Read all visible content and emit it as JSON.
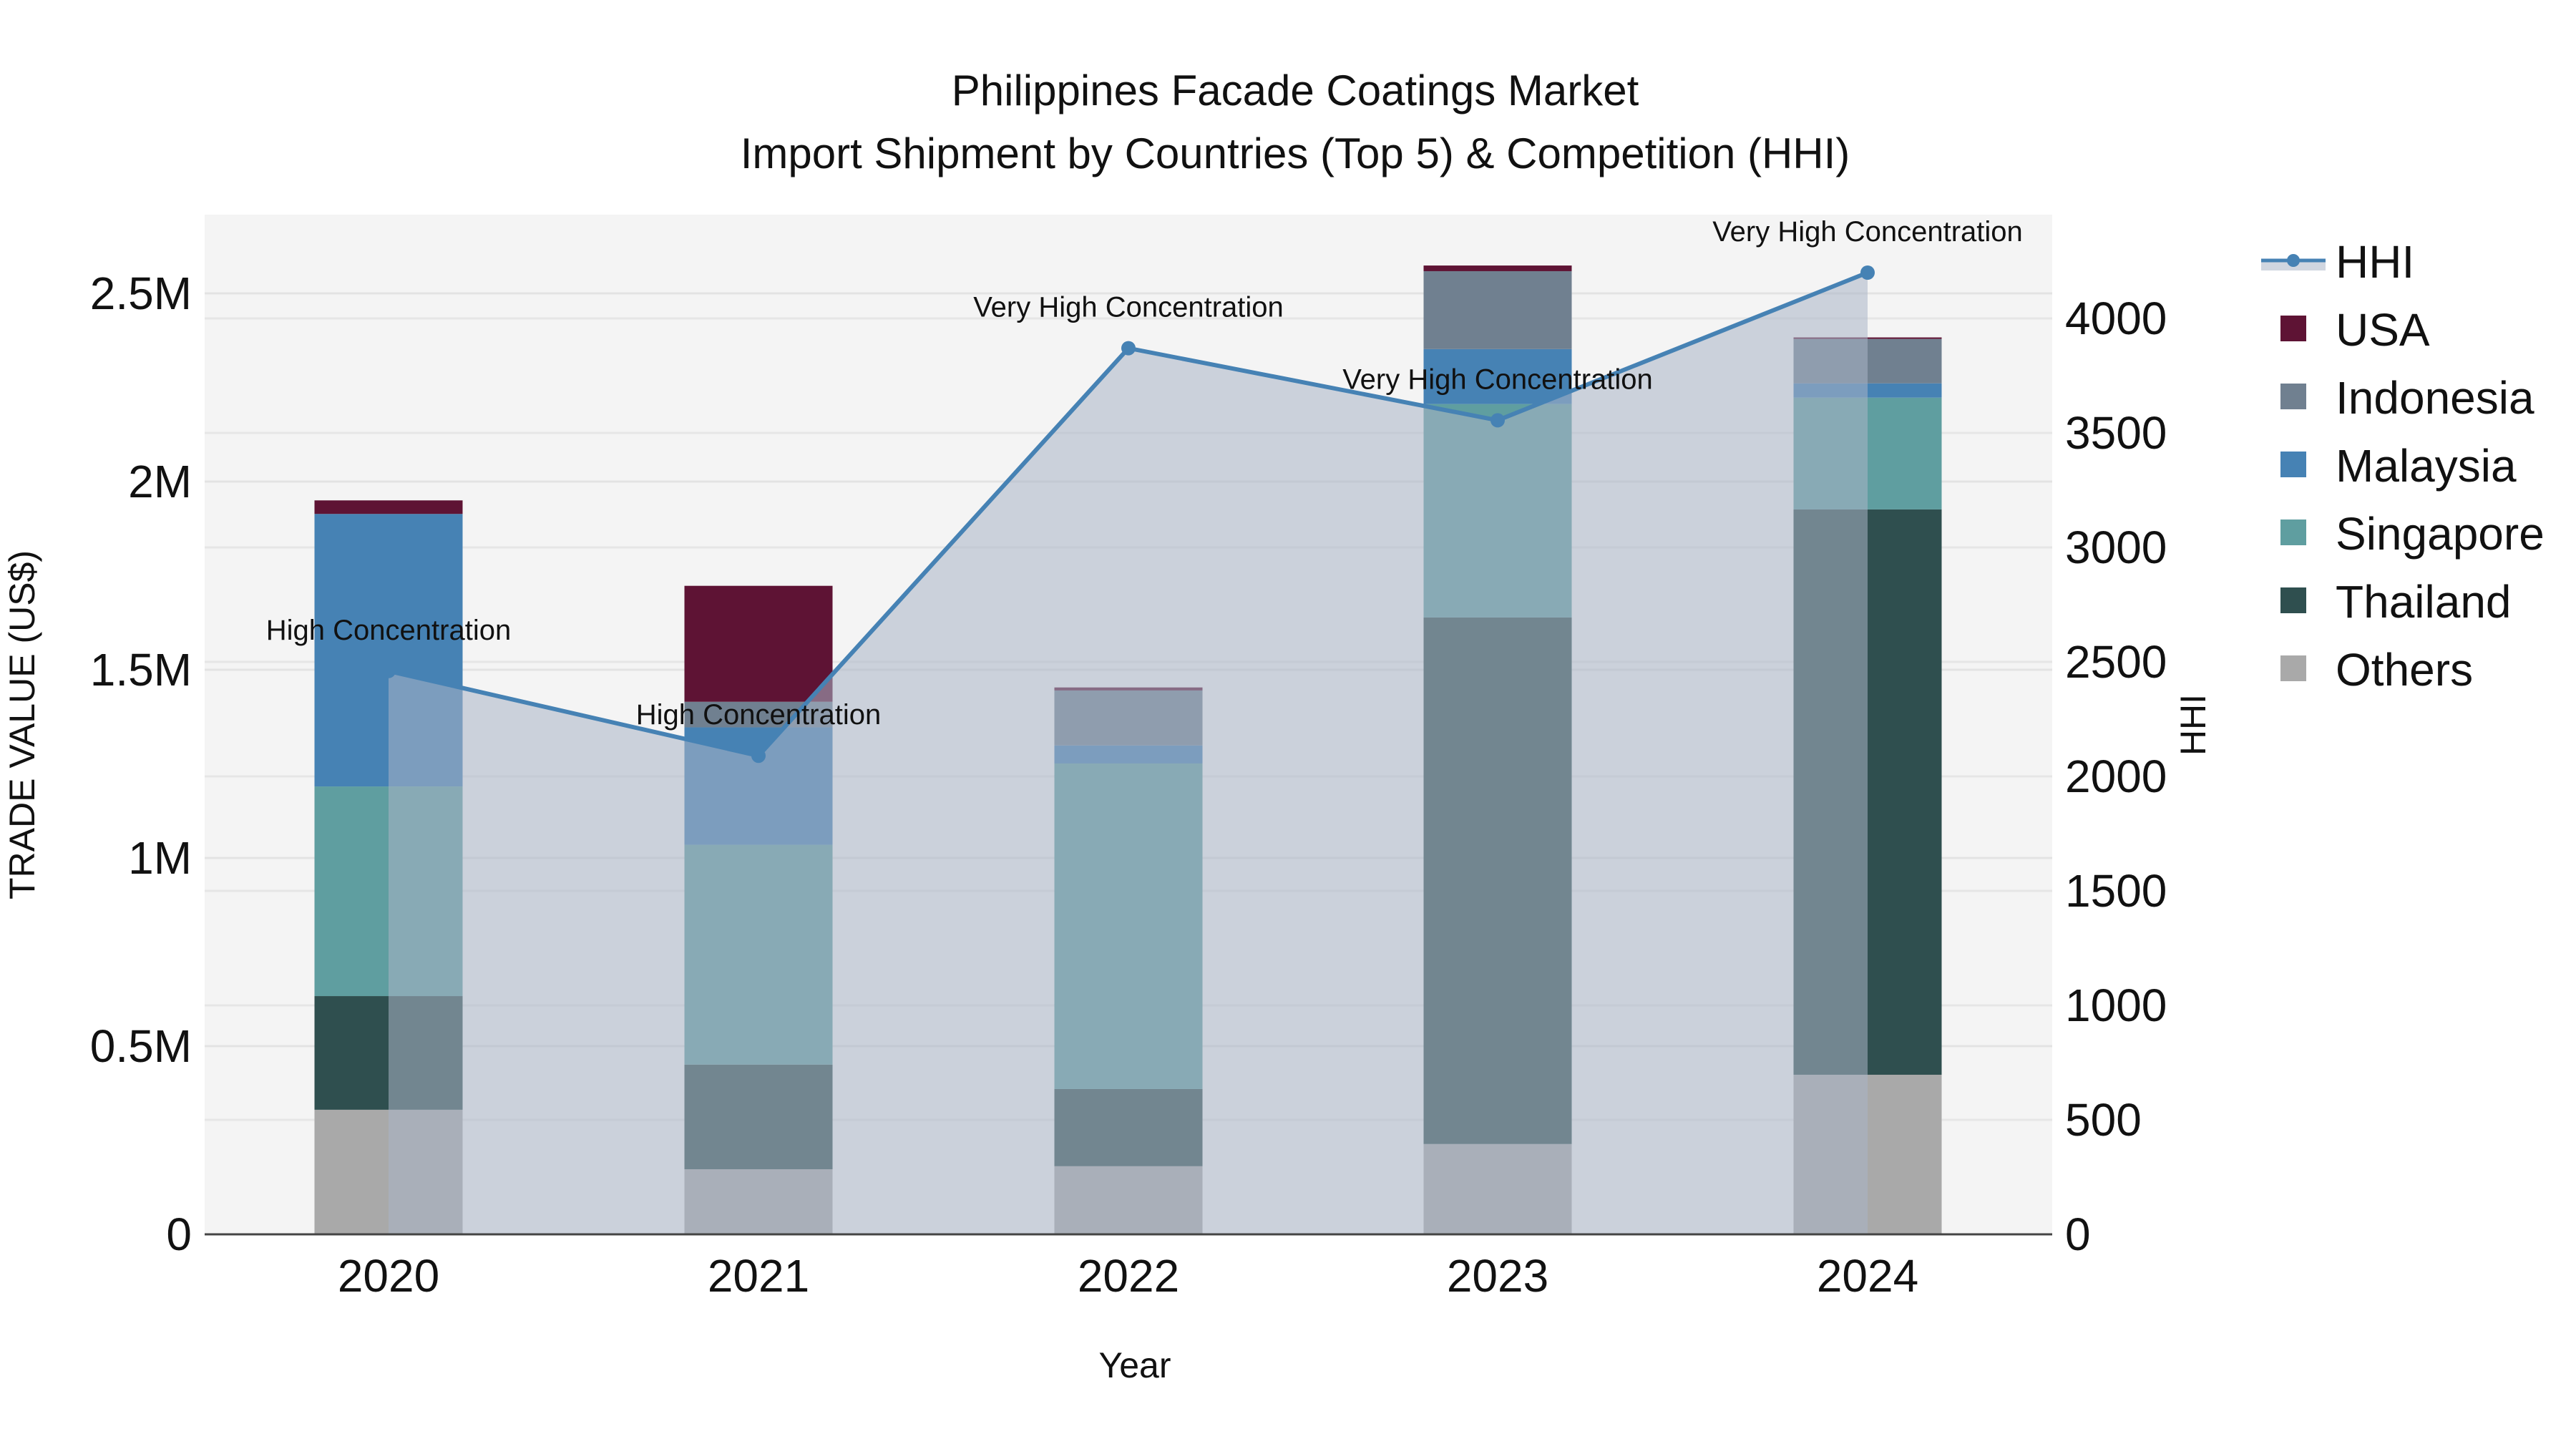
{
  "title": {
    "line1": "Philippines Facade Coatings Market",
    "line2": "Import Shipment by Countries (Top 5) & Competition (HHI)"
  },
  "axes": {
    "x_title": "Year",
    "y_left_title": "TRADE VALUE (US$)",
    "y_right_title": "HHI",
    "y_left_ticks": [
      {
        "value": 0,
        "label": "0"
      },
      {
        "value": 500000,
        "label": "0.5M"
      },
      {
        "value": 1000000,
        "label": "1M"
      },
      {
        "value": 1500000,
        "label": "1.5M"
      },
      {
        "value": 2000000,
        "label": "2M"
      },
      {
        "value": 2500000,
        "label": "2.5M"
      }
    ],
    "y_right_ticks": [
      {
        "value": 0,
        "label": "0"
      },
      {
        "value": 500,
        "label": "500"
      },
      {
        "value": 1000,
        "label": "1000"
      },
      {
        "value": 1500,
        "label": "1500"
      },
      {
        "value": 2000,
        "label": "2000"
      },
      {
        "value": 2500,
        "label": "2500"
      },
      {
        "value": 3000,
        "label": "3000"
      },
      {
        "value": 3500,
        "label": "3500"
      },
      {
        "value": 4000,
        "label": "4000"
      }
    ]
  },
  "legend": [
    {
      "name": "HHI",
      "type": "line",
      "color": "#4682b4"
    },
    {
      "name": "USA",
      "type": "bar",
      "color": "#5e1334"
    },
    {
      "name": "Indonesia",
      "type": "bar",
      "color": "#708090"
    },
    {
      "name": "Malaysia",
      "type": "bar",
      "color": "#4682b4"
    },
    {
      "name": "Singapore",
      "type": "bar",
      "color": "#5f9ea0"
    },
    {
      "name": "Thailand",
      "type": "bar",
      "color": "#2f4f4f"
    },
    {
      "name": "Others",
      "type": "bar",
      "color": "#a9a9a9"
    }
  ],
  "chart_data": {
    "type": "bar",
    "subtype": "stacked bar + line (dual axis)",
    "title": "Philippines Facade Coatings Market - Import Shipment by Countries (Top 5) & Competition (HHI)",
    "xlabel": "Year",
    "ylabel": "TRADE VALUE (US$)",
    "y2label": "HHI",
    "categories": [
      "2020",
      "2021",
      "2022",
      "2023",
      "2024"
    ],
    "ylim": [
      0,
      2700000
    ],
    "y2lim": [
      0,
      4450
    ],
    "grid": true,
    "legend_position": "right",
    "stack_order_bottom_to_top": [
      "Others",
      "Thailand",
      "Singapore",
      "Malaysia",
      "Indonesia",
      "USA"
    ],
    "series": [
      {
        "name": "Others",
        "axis": "left",
        "color": "#a9a9a9",
        "values": [
          331000,
          173000,
          181000,
          240000,
          424000
        ]
      },
      {
        "name": "Thailand",
        "axis": "left",
        "color": "#2f4f4f",
        "values": [
          302000,
          278000,
          205000,
          1399000,
          1502000
        ]
      },
      {
        "name": "Singapore",
        "axis": "left",
        "color": "#5f9ea0",
        "values": [
          557000,
          584000,
          865000,
          567000,
          297000
        ]
      },
      {
        "name": "Malaysia",
        "axis": "left",
        "color": "#4682b4",
        "values": [
          724000,
          312000,
          48000,
          146000,
          38000
        ]
      },
      {
        "name": "Indonesia",
        "axis": "left",
        "color": "#708090",
        "values": [
          0,
          68000,
          146000,
          207000,
          118000
        ]
      },
      {
        "name": "USA",
        "axis": "left",
        "color": "#5e1334",
        "values": [
          36000,
          308000,
          8000,
          15000,
          4000
        ]
      },
      {
        "name": "HHI",
        "axis": "right",
        "type": "line+area",
        "color": "#4682b4",
        "values": [
          2460,
          2090,
          3870,
          3555,
          4200
        ]
      }
    ],
    "totals": [
      1950000,
      1723000,
      1453000,
      2574000,
      2383000
    ],
    "annotations": [
      {
        "x": "2020",
        "text": "High Concentration"
      },
      {
        "x": "2021",
        "text": "High Concentration"
      },
      {
        "x": "2022",
        "text": "Very High Concentration"
      },
      {
        "x": "2023",
        "text": "Very High Concentration"
      },
      {
        "x": "2024",
        "text": "Very High Concentration"
      }
    ]
  }
}
